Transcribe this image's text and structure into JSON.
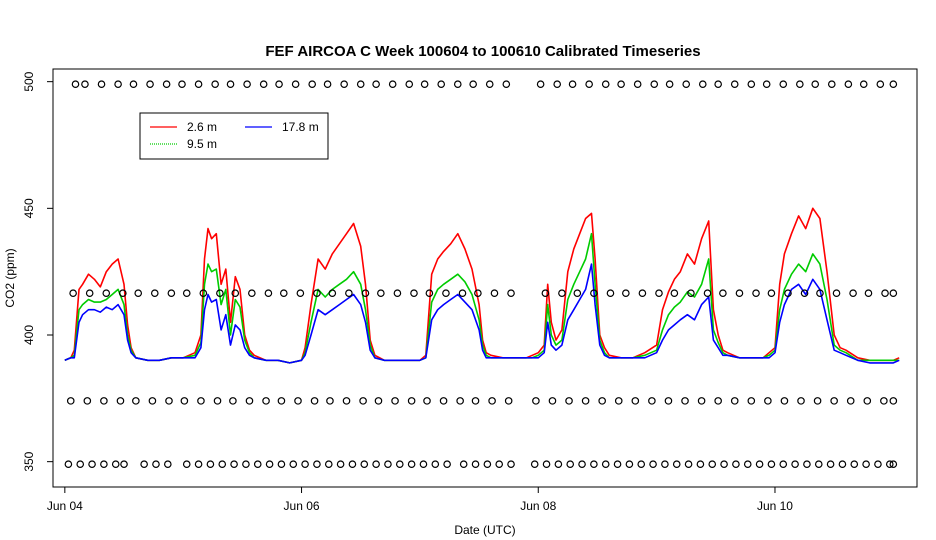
{
  "chart_data": {
    "type": "line",
    "title": "FEF AIRCOA C  Week 100604 to 100610  Calibrated Timeseries",
    "xlabel": "Date (UTC)",
    "ylabel": "CO2 (ppm)",
    "xlim": [
      -0.1,
      7.2
    ],
    "ylim": [
      340,
      505
    ],
    "x_ticks": [
      {
        "label": "Jun 04",
        "value": 0
      },
      {
        "label": "Jun 06",
        "value": 2
      },
      {
        "label": "Jun 08",
        "value": 4
      },
      {
        "label": "Jun 10",
        "value": 6
      }
    ],
    "y_ticks": [
      350,
      400,
      450,
      500
    ],
    "grid": false,
    "legend": {
      "position": "top-left",
      "entries": [
        {
          "name": "2.6 m",
          "color": "#ff0000"
        },
        {
          "name": "9.5 m",
          "color": "#00cc00"
        },
        {
          "name": "17.8 m",
          "color": "#0000ff"
        }
      ]
    },
    "series": [
      {
        "name": "2.6 m",
        "color": "#ff0000",
        "x": [
          0.0,
          0.05,
          0.08,
          0.12,
          0.15,
          0.2,
          0.25,
          0.3,
          0.35,
          0.4,
          0.45,
          0.5,
          0.53,
          0.56,
          0.6,
          0.7,
          0.8,
          0.9,
          1.0,
          1.1,
          1.15,
          1.18,
          1.21,
          1.24,
          1.28,
          1.32,
          1.36,
          1.4,
          1.44,
          1.48,
          1.52,
          1.56,
          1.6,
          1.7,
          1.8,
          1.9,
          2.0,
          2.03,
          2.08,
          2.14,
          2.2,
          2.26,
          2.32,
          2.38,
          2.44,
          2.5,
          2.54,
          2.58,
          2.62,
          2.7,
          2.8,
          2.9,
          3.0,
          3.05,
          3.1,
          3.15,
          3.2,
          3.26,
          3.32,
          3.38,
          3.44,
          3.5,
          3.53,
          3.56,
          3.6,
          3.7,
          3.8,
          3.9,
          3.95,
          4.0,
          4.05,
          4.08,
          4.11,
          4.15,
          4.2,
          4.25,
          4.3,
          4.35,
          4.4,
          4.45,
          4.48,
          4.52,
          4.56,
          4.6,
          4.7,
          4.8,
          4.9,
          5.0,
          5.05,
          5.1,
          5.15,
          5.2,
          5.26,
          5.32,
          5.38,
          5.44,
          5.48,
          5.52,
          5.56,
          5.6,
          5.7,
          5.8,
          5.9,
          5.95,
          6.0,
          6.04,
          6.08,
          6.14,
          6.2,
          6.26,
          6.32,
          6.38,
          6.44,
          6.5,
          6.55,
          6.6,
          6.7,
          6.8,
          6.9,
          7.0,
          7.05
        ],
        "y": [
          390,
          391,
          394,
          418,
          420,
          424,
          422,
          419,
          425,
          428,
          430,
          420,
          404,
          395,
          391,
          390,
          390,
          391,
          391,
          393,
          400,
          430,
          442,
          438,
          440,
          420,
          426,
          405,
          423,
          418,
          400,
          394,
          392,
          390,
          390,
          389,
          390,
          395,
          412,
          430,
          426,
          432,
          436,
          440,
          444,
          435,
          420,
          398,
          392,
          390,
          390,
          390,
          390,
          392,
          424,
          430,
          433,
          436,
          440,
          434,
          426,
          412,
          398,
          393,
          392,
          391,
          391,
          391,
          392,
          393,
          396,
          420,
          405,
          398,
          402,
          425,
          434,
          440,
          446,
          448,
          430,
          400,
          395,
          392,
          391,
          391,
          393,
          396,
          410,
          417,
          422,
          425,
          432,
          428,
          438,
          445,
          410,
          400,
          394,
          393,
          391,
          391,
          391,
          393,
          395,
          420,
          432,
          440,
          447,
          442,
          450,
          446,
          425,
          400,
          395,
          394,
          391,
          390,
          390,
          390,
          391
        ]
      },
      {
        "name": "9.5 m",
        "color": "#00cc00",
        "x": [
          0.0,
          0.05,
          0.08,
          0.12,
          0.15,
          0.2,
          0.25,
          0.3,
          0.35,
          0.4,
          0.45,
          0.5,
          0.53,
          0.56,
          0.6,
          0.7,
          0.8,
          0.9,
          1.0,
          1.1,
          1.15,
          1.18,
          1.21,
          1.24,
          1.28,
          1.32,
          1.36,
          1.4,
          1.44,
          1.48,
          1.52,
          1.56,
          1.6,
          1.7,
          1.8,
          1.9,
          2.0,
          2.03,
          2.08,
          2.14,
          2.2,
          2.26,
          2.32,
          2.38,
          2.44,
          2.5,
          2.54,
          2.58,
          2.62,
          2.7,
          2.8,
          2.9,
          3.0,
          3.05,
          3.1,
          3.15,
          3.2,
          3.26,
          3.32,
          3.38,
          3.44,
          3.5,
          3.53,
          3.56,
          3.6,
          3.7,
          3.8,
          3.9,
          3.95,
          4.0,
          4.05,
          4.08,
          4.11,
          4.15,
          4.2,
          4.25,
          4.3,
          4.35,
          4.4,
          4.45,
          4.48,
          4.52,
          4.56,
          4.6,
          4.7,
          4.8,
          4.9,
          5.0,
          5.05,
          5.1,
          5.15,
          5.2,
          5.26,
          5.32,
          5.38,
          5.44,
          5.48,
          5.52,
          5.56,
          5.6,
          5.7,
          5.8,
          5.9,
          5.95,
          6.0,
          6.04,
          6.08,
          6.14,
          6.2,
          6.26,
          6.32,
          6.38,
          6.44,
          6.5,
          6.55,
          6.6,
          6.7,
          6.8,
          6.9,
          7.0,
          7.05
        ],
        "y": [
          390,
          391,
          392,
          410,
          412,
          414,
          413,
          413,
          414,
          416,
          418,
          412,
          400,
          394,
          391,
          390,
          390,
          391,
          391,
          392,
          397,
          420,
          428,
          425,
          426,
          412,
          418,
          400,
          414,
          411,
          398,
          393,
          391,
          390,
          390,
          389,
          390,
          393,
          405,
          418,
          415,
          418,
          420,
          422,
          425,
          420,
          410,
          396,
          391,
          390,
          390,
          390,
          390,
          391,
          413,
          418,
          420,
          422,
          424,
          421,
          416,
          406,
          396,
          392,
          391,
          391,
          391,
          391,
          391,
          392,
          394,
          412,
          400,
          396,
          398,
          414,
          420,
          425,
          430,
          440,
          420,
          398,
          393,
          391,
          391,
          391,
          392,
          394,
          402,
          408,
          411,
          413,
          417,
          415,
          420,
          430,
          402,
          397,
          393,
          392,
          391,
          391,
          391,
          392,
          394,
          410,
          418,
          424,
          428,
          425,
          432,
          428,
          414,
          396,
          394,
          393,
          390,
          390,
          390,
          390,
          390
        ]
      },
      {
        "name": "17.8 m",
        "color": "#0000ff",
        "x": [
          0.0,
          0.05,
          0.08,
          0.12,
          0.15,
          0.2,
          0.25,
          0.3,
          0.35,
          0.4,
          0.45,
          0.5,
          0.53,
          0.56,
          0.6,
          0.7,
          0.8,
          0.9,
          1.0,
          1.1,
          1.15,
          1.18,
          1.21,
          1.24,
          1.28,
          1.32,
          1.36,
          1.4,
          1.44,
          1.48,
          1.52,
          1.56,
          1.6,
          1.7,
          1.8,
          1.9,
          2.0,
          2.03,
          2.08,
          2.14,
          2.2,
          2.26,
          2.32,
          2.38,
          2.44,
          2.5,
          2.54,
          2.58,
          2.62,
          2.7,
          2.8,
          2.9,
          3.0,
          3.05,
          3.1,
          3.15,
          3.2,
          3.26,
          3.32,
          3.38,
          3.44,
          3.5,
          3.53,
          3.56,
          3.6,
          3.7,
          3.8,
          3.9,
          3.95,
          4.0,
          4.05,
          4.08,
          4.11,
          4.15,
          4.2,
          4.25,
          4.3,
          4.35,
          4.4,
          4.45,
          4.48,
          4.52,
          4.56,
          4.6,
          4.7,
          4.8,
          4.9,
          5.0,
          5.05,
          5.1,
          5.15,
          5.2,
          5.26,
          5.32,
          5.38,
          5.44,
          5.48,
          5.52,
          5.56,
          5.6,
          5.7,
          5.8,
          5.9,
          5.95,
          6.0,
          6.04,
          6.08,
          6.14,
          6.2,
          6.26,
          6.32,
          6.38,
          6.44,
          6.5,
          6.55,
          6.6,
          6.7,
          6.8,
          6.9,
          7.0,
          7.05
        ],
        "y": [
          390,
          391,
          391,
          405,
          408,
          410,
          410,
          409,
          411,
          410,
          412,
          408,
          398,
          393,
          391,
          390,
          390,
          391,
          391,
          391,
          395,
          410,
          416,
          413,
          414,
          402,
          408,
          396,
          404,
          402,
          395,
          392,
          391,
          390,
          390,
          389,
          390,
          392,
          400,
          410,
          408,
          410,
          412,
          414,
          416,
          412,
          405,
          394,
          391,
          390,
          390,
          390,
          390,
          391,
          406,
          410,
          412,
          414,
          416,
          413,
          410,
          402,
          394,
          391,
          391,
          391,
          391,
          391,
          391,
          391,
          393,
          405,
          396,
          394,
          396,
          406,
          410,
          414,
          418,
          428,
          412,
          396,
          392,
          391,
          391,
          391,
          391,
          393,
          398,
          402,
          404,
          406,
          408,
          406,
          412,
          415,
          398,
          395,
          392,
          392,
          391,
          391,
          391,
          391,
          393,
          405,
          412,
          418,
          420,
          416,
          422,
          418,
          406,
          394,
          393,
          392,
          390,
          389,
          389,
          389,
          390
        ]
      },
      {
        "name": "",
        "type": "scatter",
        "marker": "open-circle",
        "color": "#000000",
        "y_level": 499,
        "x": [
          0.09,
          0.17,
          0.31,
          0.45,
          0.58,
          0.72,
          0.86,
          0.99,
          1.13,
          1.27,
          1.4,
          1.54,
          1.68,
          1.81,
          1.95,
          2.09,
          2.22,
          2.36,
          2.5,
          2.63,
          2.77,
          2.91,
          3.04,
          3.18,
          3.32,
          3.45,
          3.59,
          3.73,
          4.02,
          4.16,
          4.29,
          4.43,
          4.57,
          4.7,
          4.84,
          4.98,
          5.11,
          5.25,
          5.39,
          5.52,
          5.66,
          5.8,
          5.93,
          6.07,
          6.21,
          6.34,
          6.48,
          6.62,
          6.75,
          6.89,
          7.0
        ]
      },
      {
        "name": "",
        "type": "scatter",
        "marker": "open-circle",
        "color": "#000000",
        "y_level": 416.5,
        "x": [
          0.07,
          0.21,
          0.35,
          0.49,
          0.62,
          0.76,
          0.9,
          1.03,
          1.17,
          1.31,
          1.44,
          1.58,
          1.72,
          1.85,
          1.99,
          2.13,
          2.26,
          2.4,
          2.54,
          2.67,
          2.81,
          2.95,
          3.08,
          3.22,
          3.36,
          3.49,
          3.63,
          3.77,
          4.06,
          4.2,
          4.33,
          4.47,
          4.61,
          4.74,
          4.88,
          5.02,
          5.15,
          5.29,
          5.43,
          5.56,
          5.7,
          5.84,
          5.97,
          6.11,
          6.25,
          6.38,
          6.52,
          6.66,
          6.79,
          6.93,
          7.0
        ]
      },
      {
        "name": "",
        "type": "scatter",
        "marker": "open-circle",
        "color": "#000000",
        "y_level": 374,
        "x": [
          0.05,
          0.19,
          0.33,
          0.47,
          0.6,
          0.74,
          0.88,
          1.01,
          1.15,
          1.29,
          1.42,
          1.56,
          1.7,
          1.83,
          1.97,
          2.11,
          2.24,
          2.38,
          2.52,
          2.65,
          2.79,
          2.93,
          3.06,
          3.2,
          3.34,
          3.47,
          3.61,
          3.75,
          3.98,
          4.12,
          4.26,
          4.4,
          4.54,
          4.68,
          4.82,
          4.96,
          5.1,
          5.24,
          5.38,
          5.52,
          5.66,
          5.8,
          5.94,
          6.08,
          6.22,
          6.36,
          6.5,
          6.64,
          6.78,
          6.92,
          7.0
        ]
      },
      {
        "name": "",
        "type": "scatter",
        "marker": "open-circle",
        "color": "#000000",
        "y_level": 349,
        "x": [
          0.03,
          0.13,
          0.23,
          0.33,
          0.43,
          0.5,
          0.67,
          0.77,
          0.87,
          1.03,
          1.13,
          1.23,
          1.33,
          1.43,
          1.53,
          1.63,
          1.73,
          1.83,
          1.93,
          2.03,
          2.13,
          2.23,
          2.33,
          2.43,
          2.53,
          2.63,
          2.73,
          2.83,
          2.93,
          3.03,
          3.13,
          3.23,
          3.37,
          3.47,
          3.57,
          3.67,
          3.77,
          3.97,
          4.07,
          4.17,
          4.27,
          4.37,
          4.47,
          4.57,
          4.67,
          4.77,
          4.87,
          4.97,
          5.07,
          5.17,
          5.27,
          5.37,
          5.47,
          5.57,
          5.67,
          5.77,
          5.87,
          5.97,
          6.07,
          6.17,
          6.27,
          6.37,
          6.47,
          6.57,
          6.67,
          6.77,
          6.87,
          6.97,
          7.0
        ]
      }
    ]
  }
}
